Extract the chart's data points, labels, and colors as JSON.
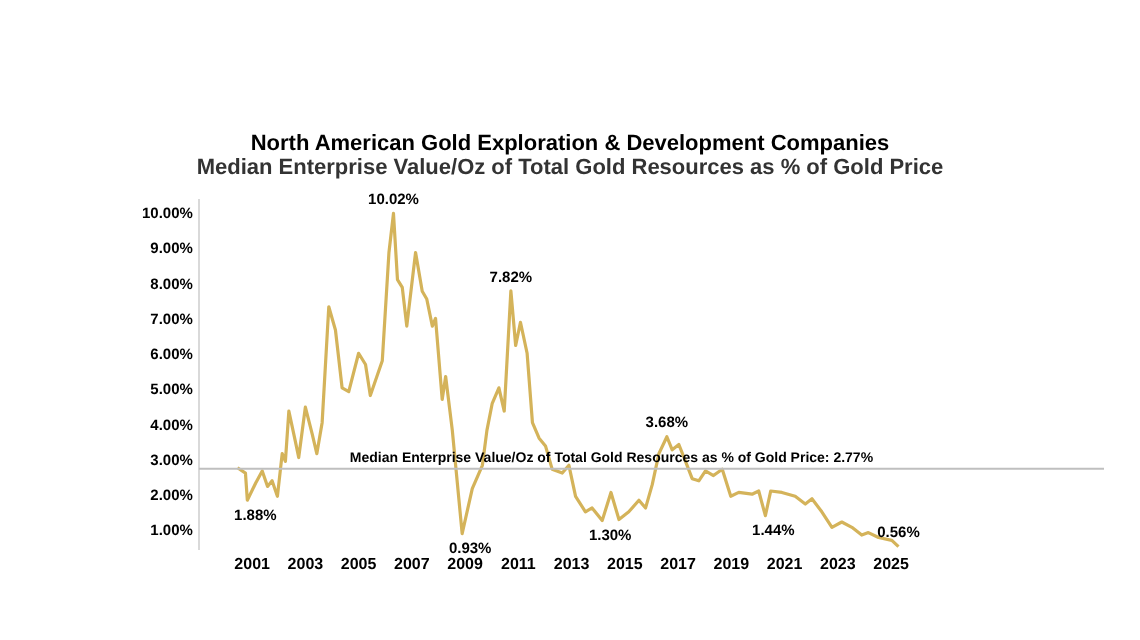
{
  "chart_data": {
    "type": "line",
    "title": "North American Gold Exploration & Development Companies",
    "subtitle": "Median Enterprise Value/Oz of Total Gold Resources as % of Gold Price",
    "x": [
      2000.45,
      2000.75,
      2000.82,
      2001.13,
      2001.38,
      2001.58,
      2001.75,
      2001.95,
      2002.13,
      2002.25,
      2002.38,
      2002.63,
      2002.75,
      2003.0,
      2003.26,
      2003.43,
      2003.63,
      2003.88,
      2004.13,
      2004.38,
      2004.63,
      2005.0,
      2005.26,
      2005.44,
      2005.89,
      2006.14,
      2006.31,
      2006.46,
      2006.64,
      2006.81,
      2007.14,
      2007.39,
      2007.56,
      2007.77,
      2007.89,
      2008.14,
      2008.27,
      2008.52,
      2008.89,
      2009.27,
      2009.65,
      2009.82,
      2010.02,
      2010.27,
      2010.47,
      2010.72,
      2010.9,
      2011.08,
      2011.33,
      2011.53,
      2011.78,
      2012.02,
      2012.27,
      2012.65,
      2012.9,
      2013.15,
      2013.52,
      2013.77,
      2014.15,
      2014.48,
      2014.78,
      2015.15,
      2015.53,
      2015.78,
      2016.03,
      2016.28,
      2016.58,
      2016.78,
      2017.03,
      2017.28,
      2017.53,
      2017.78,
      2018.03,
      2018.33,
      2018.66,
      2018.98,
      2019.28,
      2019.78,
      2020.03,
      2020.28,
      2020.48,
      2020.9,
      2021.4,
      2021.78,
      2022.03,
      2022.4,
      2022.78,
      2023.15,
      2023.53,
      2023.9,
      2024.15,
      2024.53,
      2025.03,
      2025.28
    ],
    "series": [
      {
        "color": "#d4b35a",
        "values": [
          2.8,
          2.65,
          1.88,
          2.36,
          2.71,
          2.27,
          2.43,
          1.99,
          3.2,
          2.98,
          4.41,
          3.53,
          3.09,
          4.52,
          3.75,
          3.2,
          4.08,
          7.37,
          6.71,
          5.07,
          4.96,
          6.05,
          5.73,
          4.85,
          5.84,
          8.91,
          10.02,
          8.14,
          7.92,
          6.82,
          8.91,
          7.81,
          7.59,
          6.82,
          7.04,
          4.74,
          5.39,
          3.86,
          0.93,
          2.21,
          2.87,
          3.86,
          4.63,
          5.07,
          4.41,
          7.82,
          6.27,
          6.93,
          6.05,
          4.08,
          3.64,
          3.42,
          2.76,
          2.65,
          2.87,
          1.99,
          1.55,
          1.66,
          1.3,
          2.1,
          1.33,
          1.55,
          1.88,
          1.66,
          2.32,
          3.2,
          3.68,
          3.31,
          3.46,
          2.98,
          2.49,
          2.43,
          2.71,
          2.58,
          2.76,
          1.99,
          2.1,
          2.05,
          2.14,
          1.44,
          2.14,
          2.1,
          1.99,
          1.77,
          1.92,
          1.55,
          1.11,
          1.26,
          1.11,
          0.89,
          0.96,
          0.82,
          0.74,
          0.56
        ]
      }
    ],
    "xlim": [
      1999,
      2033
    ],
    "xticks": [
      2001,
      2003,
      2005,
      2007,
      2009,
      2011,
      2013,
      2015,
      2017,
      2019,
      2021,
      2023,
      2025
    ],
    "ylim": [
      0.5,
      10.4
    ],
    "yticks": [
      {
        "value": 1,
        "label": "1.00%"
      },
      {
        "value": 2,
        "label": "2.00%"
      },
      {
        "value": 3,
        "label": "3.00%"
      },
      {
        "value": 4,
        "label": "4.00%"
      },
      {
        "value": 5,
        "label": "5.00%"
      },
      {
        "value": 6,
        "label": "6.00%"
      },
      {
        "value": 7,
        "label": "7.00%"
      },
      {
        "value": 8,
        "label": "8.00%"
      },
      {
        "value": 9,
        "label": "9.00%"
      },
      {
        "value": 10,
        "label": "10.00%"
      }
    ],
    "ref_lines": [
      {
        "axis": "y",
        "value": 2.77,
        "label": "Median Enterprise Value/Oz of Total Gold Resources as % of Gold Price: 2.77%",
        "color": "#bfbfbf"
      }
    ],
    "annotations": [
      {
        "text": "1.88%",
        "x": 2000.82,
        "y": 1.88
      },
      {
        "text": "10.02%",
        "x": 2006.31,
        "y": 10.02
      },
      {
        "text": "0.93%",
        "x": 2008.89,
        "y": 0.93
      },
      {
        "text": "7.82%",
        "x": 2010.72,
        "y": 7.82
      },
      {
        "text": "1.30%",
        "x": 2014.15,
        "y": 1.3
      },
      {
        "text": "3.68%",
        "x": 2016.58,
        "y": 3.68
      },
      {
        "text": "1.44%",
        "x": 2020.28,
        "y": 1.44
      },
      {
        "text": "0.56%",
        "x": 2025.28,
        "y": 0.56
      }
    ],
    "grid": false,
    "legend": false,
    "marker": "none",
    "line_style": "solid"
  }
}
